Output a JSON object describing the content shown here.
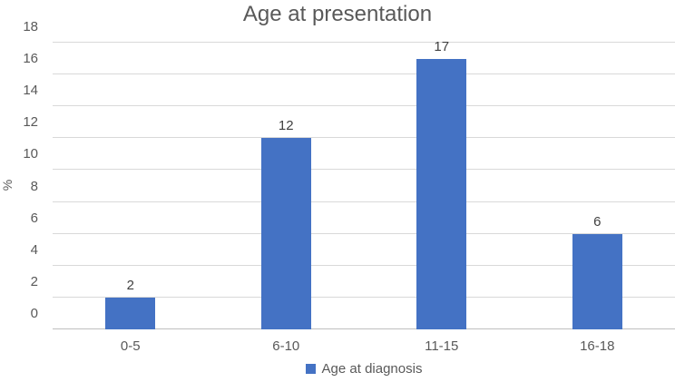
{
  "chart_data": {
    "type": "bar",
    "title": "Age at presentation",
    "categories": [
      "0-5",
      "6-10",
      "11-15",
      "16-18"
    ],
    "values": [
      2,
      12,
      17,
      6
    ],
    "series": [
      {
        "name": "Age at diagnosis",
        "values": [
          2,
          12,
          17,
          6
        ]
      }
    ],
    "xlabel": "",
    "ylabel": "%",
    "ylim": [
      0,
      18
    ],
    "ytick_step": 2,
    "yticks": [
      0,
      2,
      4,
      6,
      8,
      10,
      12,
      14,
      16,
      18
    ],
    "grid": true,
    "legend_position": "bottom",
    "legend_label": "Age at diagnosis",
    "colors": {
      "bar": "#4472C4",
      "text": "#595959",
      "data_label": "#404040",
      "gridline": "#D9D9D9",
      "axis_line": "#BFBFBF",
      "background": "#FFFFFF"
    }
  }
}
